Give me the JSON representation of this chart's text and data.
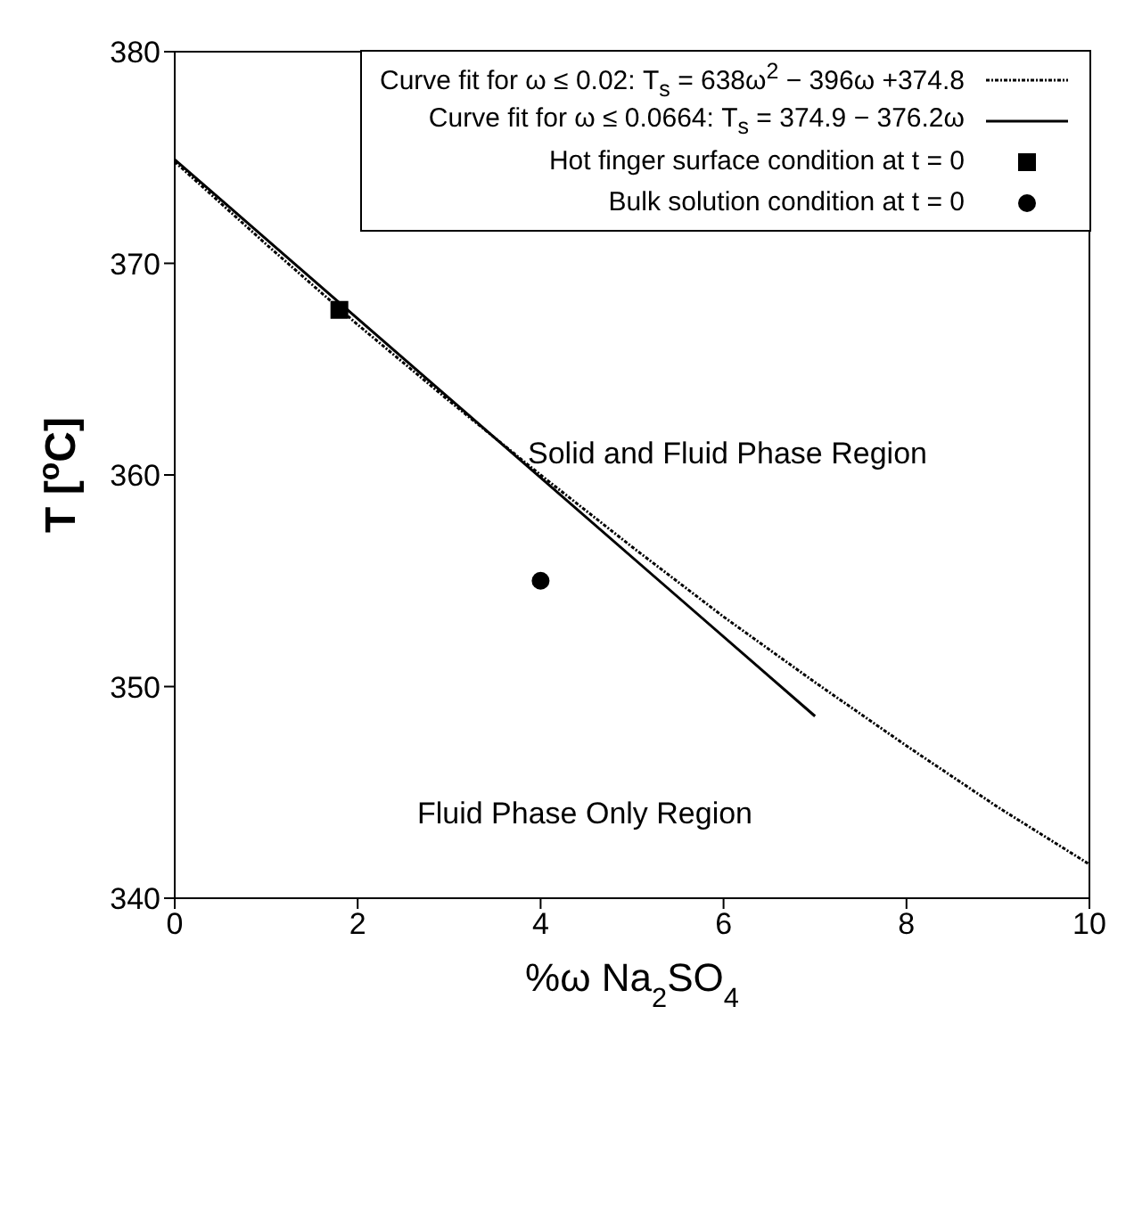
{
  "chart_data": {
    "type": "line",
    "xlabel": "%ω Na$_{2}$SO$_{4}$",
    "ylabel": "T [$^{o}$C]",
    "xlim": [
      0,
      10
    ],
    "xticks": [
      0,
      2,
      4,
      6,
      8,
      10
    ],
    "ylim": [
      340,
      380
    ],
    "yticks": [
      340,
      350,
      360,
      370,
      380
    ],
    "legend": "top right",
    "series": [
      {
        "name": "Curve fit for ω ≤ 0.02: T$_{s}$ = 638ω$^{2}$ − 396ω +374.8",
        "color": "#000000",
        "line_style": "dotted",
        "marker": "none",
        "x": [
          0,
          1,
          2,
          3,
          4,
          5,
          6,
          7,
          8,
          9,
          10
        ],
        "values": [
          374.8,
          370.9,
          367.1,
          363.5,
          360.0,
          356.6,
          353.3,
          350.2,
          347.2,
          344.3,
          341.6
        ]
      },
      {
        "name": "Curve fit for ω ≤ 0.0664: T$_{s}$ = 374.9 − 376.2ω",
        "color": "#000000",
        "line_style": "solid",
        "marker": "none",
        "x": [
          0,
          7
        ],
        "values": [
          374.9,
          348.6
        ]
      },
      {
        "name": "Hot finger surface condition at t = 0",
        "type": "scatter",
        "color": "#000000",
        "marker": "square",
        "x": [
          1.8
        ],
        "values": [
          367.8
        ]
      },
      {
        "name": "Bulk solution condition at t = 0",
        "type": "scatter",
        "color": "#000000",
        "marker": "circle",
        "x": [
          4
        ],
        "values": [
          355
        ]
      }
    ],
    "annotations": [
      "Solid and Fluid Phase Region",
      "Fluid Phase Only Region"
    ]
  }
}
